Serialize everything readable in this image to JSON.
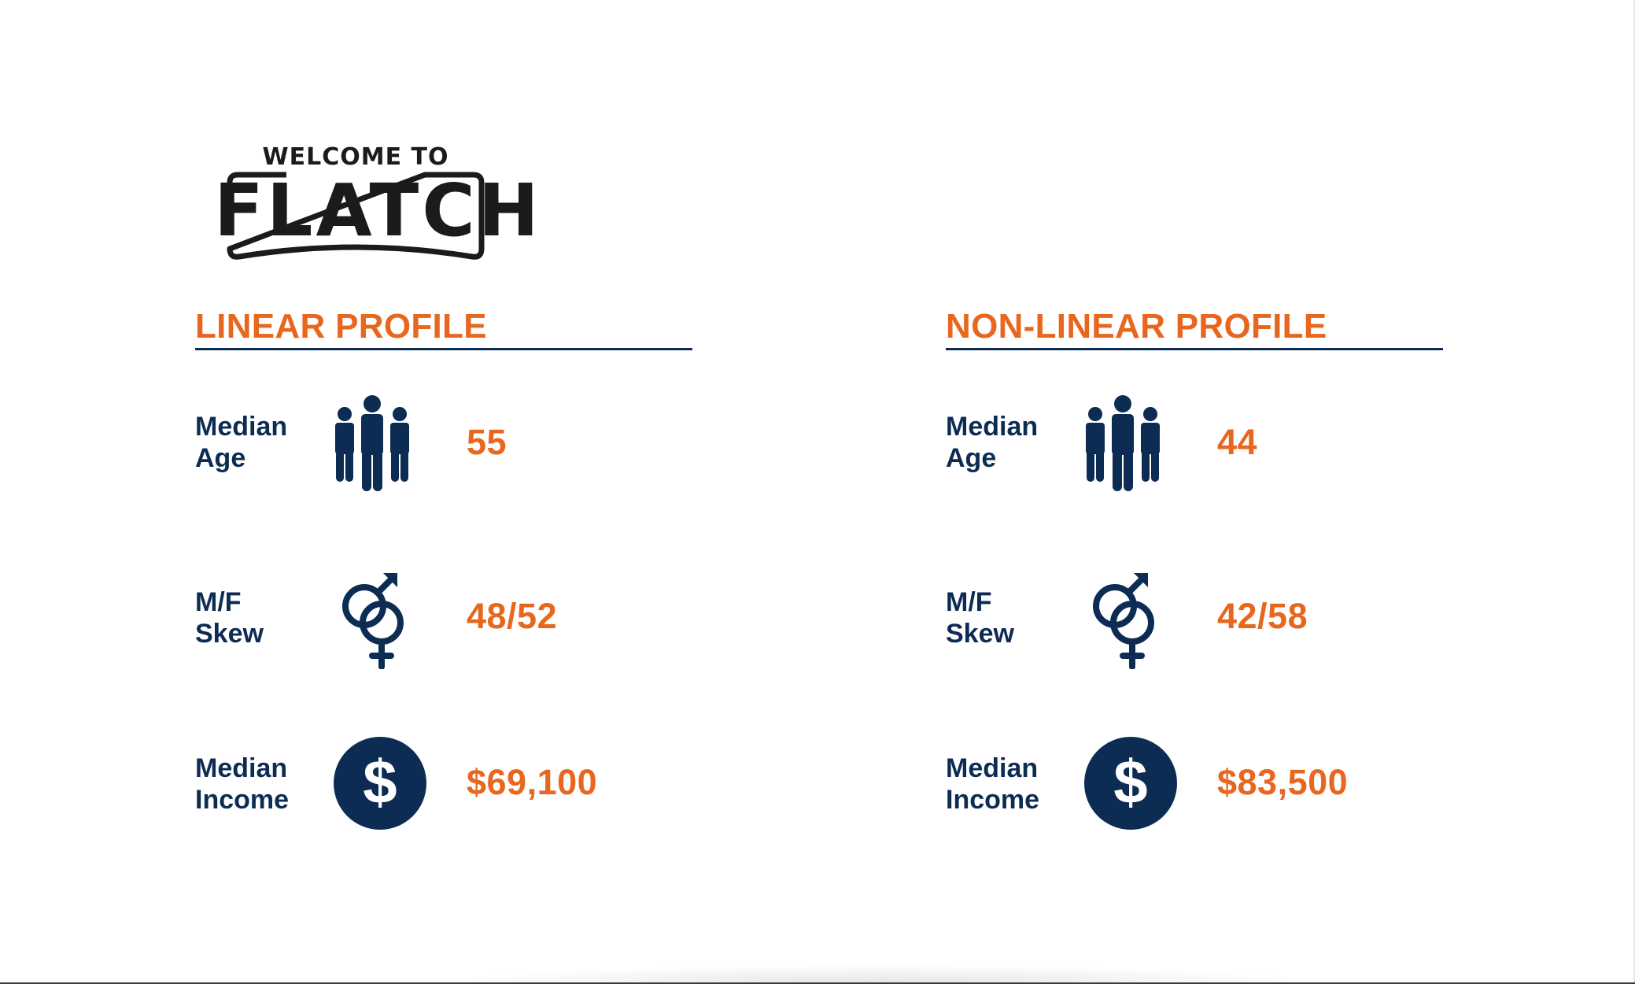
{
  "brand": {
    "logo_top": "WELCOME TO",
    "logo_main": "FLATCH"
  },
  "colors": {
    "accent": "#e8671f",
    "navy": "#0d2c54"
  },
  "linear": {
    "title": "LINEAR PROFILE",
    "median_age": {
      "label_1": "Median",
      "label_2": "Age",
      "icon": "group-people-icon",
      "value": "55"
    },
    "mf_skew": {
      "label_1": "M/F",
      "label_2": "Skew",
      "icon": "male-female-icon",
      "value": "48/52"
    },
    "median_income": {
      "label_1": "Median",
      "label_2": "Income",
      "icon": "dollar-circle-icon",
      "value": "$69,100"
    }
  },
  "nonlinear": {
    "title": "NON-LINEAR PROFILE",
    "median_age": {
      "label_1": "Median",
      "label_2": "Age",
      "icon": "group-people-icon",
      "value": "44"
    },
    "mf_skew": {
      "label_1": "M/F",
      "label_2": "Skew",
      "icon": "male-female-icon",
      "value": "42/58"
    },
    "median_income": {
      "label_1": "Median",
      "label_2": "Income",
      "icon": "dollar-circle-icon",
      "value": "$83,500"
    }
  }
}
